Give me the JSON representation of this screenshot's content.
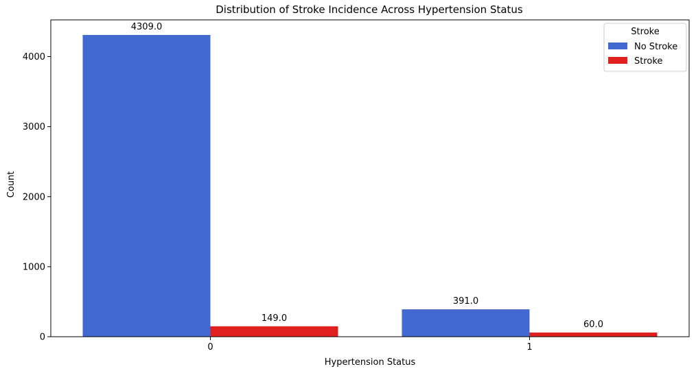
{
  "chart_data": {
    "type": "bar",
    "title": "Distribution of Stroke Incidence Across Hypertension Status",
    "xlabel": "Hypertension Status",
    "ylabel": "Count",
    "categories": [
      "0",
      "1"
    ],
    "series": [
      {
        "name": "No Stroke",
        "values": [
          4309,
          391
        ],
        "color": "#4169cf",
        "labels": [
          "4309.0",
          "391.0"
        ]
      },
      {
        "name": "Stroke",
        "values": [
          149,
          60
        ],
        "color": "#e01f1f",
        "labels": [
          "149.0",
          "60.0"
        ]
      }
    ],
    "ylim": [
      0,
      4524
    ],
    "yticks": [
      0,
      1000,
      2000,
      3000,
      4000
    ],
    "ytick_labels": [
      "0",
      "1000",
      "2000",
      "3000",
      "4000"
    ],
    "grid": false,
    "legend": {
      "title": "Stroke",
      "placement": "top-right"
    }
  }
}
